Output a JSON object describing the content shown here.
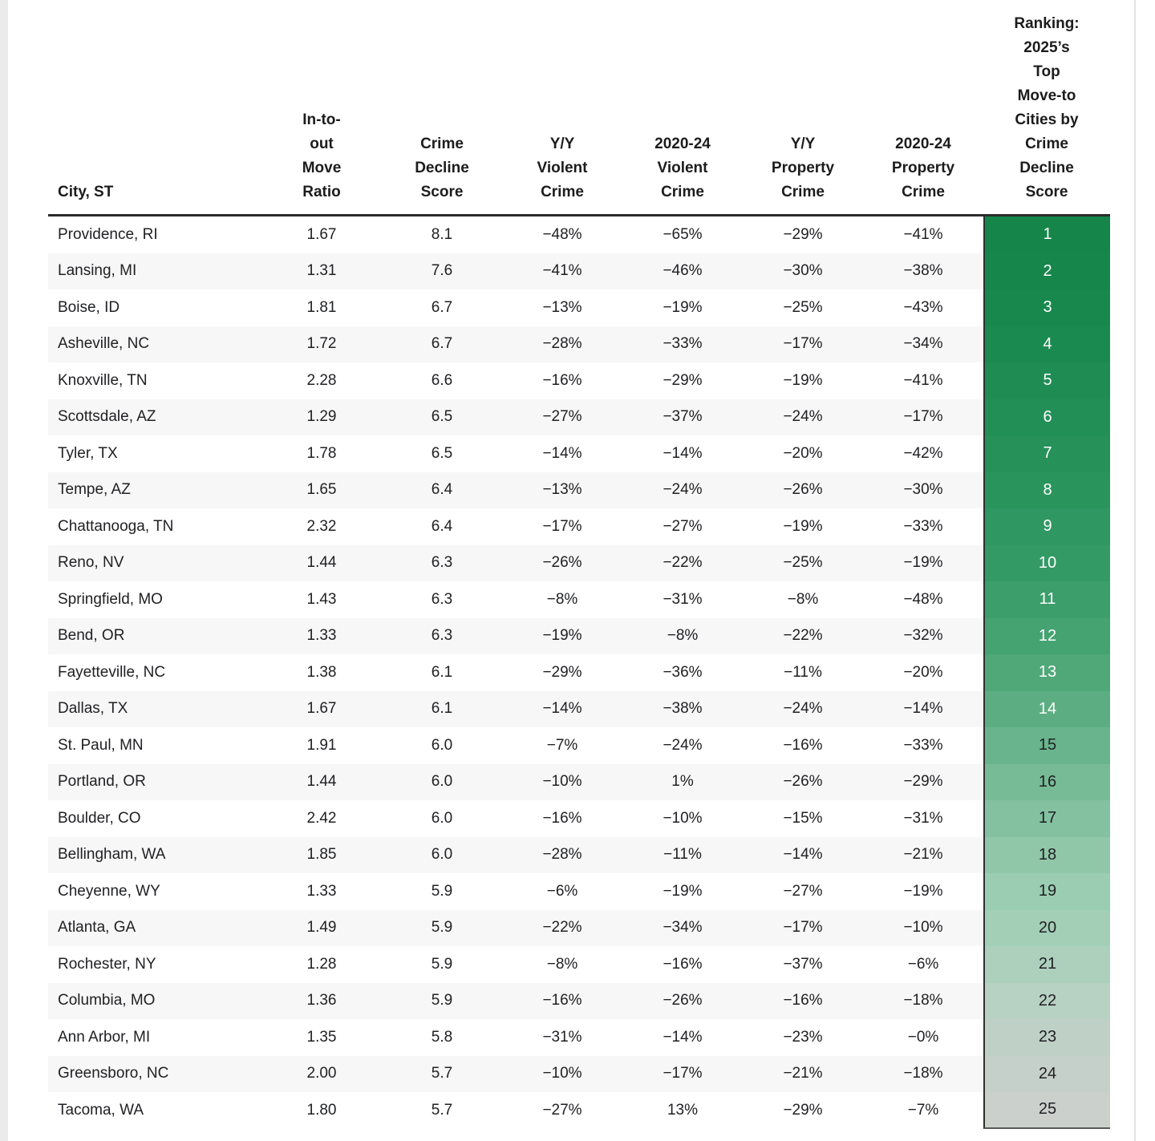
{
  "colors": {
    "header_rule": "#2b2b2b",
    "row_stripe": "#f7f7f7",
    "rank_column_border": "#2f2f2f",
    "rank_gradient_start": "#15854a",
    "rank_gradient_end": "#ccd0cd",
    "text": "#202124"
  },
  "table": {
    "columns": [
      "City, ST",
      "In-to-\nout\nMove\nRatio",
      "Crime\nDecline\nScore",
      "Y/Y\nViolent\nCrime",
      "2020-24\nViolent\nCrime",
      "Y/Y\nProperty\nCrime",
      "2020-24\nProperty\nCrime",
      "Ranking:\n2025’s\nTop\nMove-to\nCities by\nCrime\nDecline\nScore"
    ],
    "rows": [
      {
        "city": "Providence, RI",
        "move_ratio": "1.67",
        "score": "8.1",
        "yy_violent": "−48%",
        "violent_2020_24": "−65%",
        "yy_property": "−29%",
        "property_2020_24": "−41%",
        "rank": "1",
        "rank_bg": "#15854a",
        "rank_text": "#ffffff"
      },
      {
        "city": "Lansing, MI",
        "move_ratio": "1.31",
        "score": "7.6",
        "yy_violent": "−41%",
        "violent_2020_24": "−46%",
        "yy_property": "−30%",
        "property_2020_24": "−38%",
        "rank": "2",
        "rank_bg": "#16864b",
        "rank_text": "#ffffff"
      },
      {
        "city": "Boise, ID",
        "move_ratio": "1.81",
        "score": "6.7",
        "yy_violent": "−13%",
        "violent_2020_24": "−19%",
        "yy_property": "−25%",
        "property_2020_24": "−43%",
        "rank": "3",
        "rank_bg": "#18884d",
        "rank_text": "#ffffff"
      },
      {
        "city": "Asheville, NC",
        "move_ratio": "1.72",
        "score": "6.7",
        "yy_violent": "−28%",
        "violent_2020_24": "−33%",
        "yy_property": "−17%",
        "property_2020_24": "−34%",
        "rank": "4",
        "rank_bg": "#1b8a50",
        "rank_text": "#ffffff"
      },
      {
        "city": "Knoxville, TN",
        "move_ratio": "2.28",
        "score": "6.6",
        "yy_violent": "−16%",
        "violent_2020_24": "−29%",
        "yy_property": "−19%",
        "property_2020_24": "−41%",
        "rank": "5",
        "rank_bg": "#1e8c53",
        "rank_text": "#ffffff"
      },
      {
        "city": "Scottsdale, AZ",
        "move_ratio": "1.29",
        "score": "6.5",
        "yy_violent": "−27%",
        "violent_2020_24": "−37%",
        "yy_property": "−24%",
        "property_2020_24": "−17%",
        "rank": "6",
        "rank_bg": "#228f56",
        "rank_text": "#ffffff"
      },
      {
        "city": "Tyler, TX",
        "move_ratio": "1.78",
        "score": "6.5",
        "yy_violent": "−14%",
        "violent_2020_24": "−14%",
        "yy_property": "−20%",
        "property_2020_24": "−42%",
        "rank": "7",
        "rank_bg": "#269159",
        "rank_text": "#ffffff"
      },
      {
        "city": "Tempe, AZ",
        "move_ratio": "1.65",
        "score": "6.4",
        "yy_violent": "−13%",
        "violent_2020_24": "−24%",
        "yy_property": "−26%",
        "property_2020_24": "−30%",
        "rank": "8",
        "rank_bg": "#2a945d",
        "rank_text": "#ffffff"
      },
      {
        "city": "Chattanooga, TN",
        "move_ratio": "2.32",
        "score": "6.4",
        "yy_violent": "−17%",
        "violent_2020_24": "−27%",
        "yy_property": "−19%",
        "property_2020_24": "−33%",
        "rank": "9",
        "rank_bg": "#2f9761",
        "rank_text": "#ffffff"
      },
      {
        "city": "Reno, NV",
        "move_ratio": "1.44",
        "score": "6.3",
        "yy_violent": "−26%",
        "violent_2020_24": "−22%",
        "yy_property": "−25%",
        "property_2020_24": "−19%",
        "rank": "10",
        "rank_bg": "#349a65",
        "rank_text": "#ffffff"
      },
      {
        "city": "Springfield, MO",
        "move_ratio": "1.43",
        "score": "6.3",
        "yy_violent": "−8%",
        "violent_2020_24": "−31%",
        "yy_property": "−8%",
        "property_2020_24": "−48%",
        "rank": "11",
        "rank_bg": "#3c9e6b",
        "rank_text": "#ffffff"
      },
      {
        "city": "Bend, OR",
        "move_ratio": "1.33",
        "score": "6.3",
        "yy_violent": "−19%",
        "violent_2020_24": "−8%",
        "yy_property": "−22%",
        "property_2020_24": "−32%",
        "rank": "12",
        "rank_bg": "#45a271",
        "rank_text": "#ffffff"
      },
      {
        "city": "Fayetteville, NC",
        "move_ratio": "1.38",
        "score": "6.1",
        "yy_violent": "−29%",
        "violent_2020_24": "−36%",
        "yy_property": "−11%",
        "property_2020_24": "−20%",
        "rank": "13",
        "rank_bg": "#50a879",
        "rank_text": "#ffffff"
      },
      {
        "city": "Dallas, TX",
        "move_ratio": "1.67",
        "score": "6.1",
        "yy_violent": "−14%",
        "violent_2020_24": "−38%",
        "yy_property": "−24%",
        "property_2020_24": "−14%",
        "rank": "14",
        "rank_bg": "#5cae82",
        "rank_text": "#ffffff"
      },
      {
        "city": "St. Paul, MN",
        "move_ratio": "1.91",
        "score": "6.0",
        "yy_violent": "−7%",
        "violent_2020_24": "−24%",
        "yy_property": "−16%",
        "property_2020_24": "−33%",
        "rank": "15",
        "rank_bg": "#69b48c",
        "rank_text": "#202124"
      },
      {
        "city": "Portland, OR",
        "move_ratio": "1.44",
        "score": "6.0",
        "yy_violent": "−10%",
        "violent_2020_24": "1%",
        "yy_property": "−26%",
        "property_2020_24": "−29%",
        "rank": "16",
        "rank_bg": "#77bb96",
        "rank_text": "#202124"
      },
      {
        "city": "Boulder, CO",
        "move_ratio": "2.42",
        "score": "6.0",
        "yy_violent": "−16%",
        "violent_2020_24": "−10%",
        "yy_property": "−15%",
        "property_2020_24": "−31%",
        "rank": "17",
        "rank_bg": "#84c1a0",
        "rank_text": "#202124"
      },
      {
        "city": "Bellingham, WA",
        "move_ratio": "1.85",
        "score": "6.0",
        "yy_violent": "−28%",
        "violent_2020_24": "−11%",
        "yy_property": "−14%",
        "property_2020_24": "−21%",
        "rank": "18",
        "rank_bg": "#90c7a8",
        "rank_text": "#202124"
      },
      {
        "city": "Cheyenne, WY",
        "move_ratio": "1.33",
        "score": "5.9",
        "yy_violent": "−6%",
        "violent_2020_24": "−19%",
        "yy_property": "−27%",
        "property_2020_24": "−19%",
        "rank": "19",
        "rank_bg": "#9acdb1",
        "rank_text": "#202124"
      },
      {
        "city": "Atlanta, GA",
        "move_ratio": "1.49",
        "score": "5.9",
        "yy_violent": "−22%",
        "violent_2020_24": "−34%",
        "yy_property": "−17%",
        "property_2020_24": "−10%",
        "rank": "20",
        "rank_bg": "#a3cfb7",
        "rank_text": "#202124"
      },
      {
        "city": "Rochester, NY",
        "move_ratio": "1.28",
        "score": "5.9",
        "yy_violent": "−8%",
        "violent_2020_24": "−16%",
        "yy_property": "−37%",
        "property_2020_24": "−6%",
        "rank": "21",
        "rank_bg": "#add0bd",
        "rank_text": "#202124"
      },
      {
        "city": "Columbia, MO",
        "move_ratio": "1.36",
        "score": "5.9",
        "yy_violent": "−16%",
        "violent_2020_24": "−26%",
        "yy_property": "−16%",
        "property_2020_24": "−18%",
        "rank": "22",
        "rank_bg": "#b7d1c3",
        "rank_text": "#202124"
      },
      {
        "city": "Ann Arbor, MI",
        "move_ratio": "1.35",
        "score": "5.8",
        "yy_violent": "−31%",
        "violent_2020_24": "−14%",
        "yy_property": "−23%",
        "property_2020_24": "−0%",
        "rank": "23",
        "rank_bg": "#bfd0c7",
        "rank_text": "#202124"
      },
      {
        "city": "Greensboro, NC",
        "move_ratio": "2.00",
        "score": "5.7",
        "yy_violent": "−10%",
        "violent_2020_24": "−17%",
        "yy_property": "−21%",
        "property_2020_24": "−18%",
        "rank": "24",
        "rank_bg": "#c6d0ca",
        "rank_text": "#202124"
      },
      {
        "city": "Tacoma, WA",
        "move_ratio": "1.80",
        "score": "5.7",
        "yy_violent": "−27%",
        "violent_2020_24": "13%",
        "yy_property": "−29%",
        "property_2020_24": "−7%",
        "rank": "25",
        "rank_bg": "#ccd0cd",
        "rank_text": "#202124"
      }
    ]
  },
  "chart_data": {
    "type": "table",
    "title": "Ranking: 2025's Top Move-to Cities by Crime Decline Score",
    "columns": [
      "City, ST",
      "In-to-out Move Ratio",
      "Crime Decline Score",
      "Y/Y Violent Crime (%)",
      "2020-24 Violent Crime (%)",
      "Y/Y Property Crime (%)",
      "2020-24 Property Crime (%)",
      "Ranking"
    ],
    "rows": [
      [
        "Providence, RI",
        1.67,
        8.1,
        -48,
        -65,
        -29,
        -41,
        1
      ],
      [
        "Lansing, MI",
        1.31,
        7.6,
        -41,
        -46,
        -30,
        -38,
        2
      ],
      [
        "Boise, ID",
        1.81,
        6.7,
        -13,
        -19,
        -25,
        -43,
        3
      ],
      [
        "Asheville, NC",
        1.72,
        6.7,
        -28,
        -33,
        -17,
        -34,
        4
      ],
      [
        "Knoxville, TN",
        2.28,
        6.6,
        -16,
        -29,
        -19,
        -41,
        5
      ],
      [
        "Scottsdale, AZ",
        1.29,
        6.5,
        -27,
        -37,
        -24,
        -17,
        6
      ],
      [
        "Tyler, TX",
        1.78,
        6.5,
        -14,
        -14,
        -20,
        -42,
        7
      ],
      [
        "Tempe, AZ",
        1.65,
        6.4,
        -13,
        -24,
        -26,
        -30,
        8
      ],
      [
        "Chattanooga, TN",
        2.32,
        6.4,
        -17,
        -27,
        -19,
        -33,
        9
      ],
      [
        "Reno, NV",
        1.44,
        6.3,
        -26,
        -22,
        -25,
        -19,
        10
      ],
      [
        "Springfield, MO",
        1.43,
        6.3,
        -8,
        -31,
        -8,
        -48,
        11
      ],
      [
        "Bend, OR",
        1.33,
        6.3,
        -19,
        -8,
        -22,
        -32,
        12
      ],
      [
        "Fayetteville, NC",
        1.38,
        6.1,
        -29,
        -36,
        -11,
        -20,
        13
      ],
      [
        "Dallas, TX",
        1.67,
        6.1,
        -14,
        -38,
        -24,
        -14,
        14
      ],
      [
        "St. Paul, MN",
        1.91,
        6.0,
        -7,
        -24,
        -16,
        -33,
        15
      ],
      [
        "Portland, OR",
        1.44,
        6.0,
        -10,
        1,
        -26,
        -29,
        16
      ],
      [
        "Boulder, CO",
        2.42,
        6.0,
        -16,
        -10,
        -15,
        -31,
        17
      ],
      [
        "Bellingham, WA",
        1.85,
        6.0,
        -28,
        -11,
        -14,
        -21,
        18
      ],
      [
        "Cheyenne, WY",
        1.33,
        5.9,
        -6,
        -19,
        -27,
        -19,
        19
      ],
      [
        "Atlanta, GA",
        1.49,
        5.9,
        -22,
        -34,
        -17,
        -10,
        20
      ],
      [
        "Rochester, NY",
        1.28,
        5.9,
        -8,
        -16,
        -37,
        -6,
        21
      ],
      [
        "Columbia, MO",
        1.36,
        5.9,
        -16,
        -26,
        -16,
        -18,
        22
      ],
      [
        "Ann Arbor, MI",
        1.35,
        5.8,
        -31,
        -14,
        -23,
        0,
        23
      ],
      [
        "Greensboro, NC",
        2.0,
        5.7,
        -10,
        -17,
        -21,
        -18,
        24
      ],
      [
        "Tacoma, WA",
        1.8,
        5.7,
        -27,
        13,
        -29,
        -7,
        25
      ]
    ],
    "legend_position": "none",
    "grid": false,
    "notes": "Ranking column shaded on a green-to-gray gradient from rank 1 (dark green, white text) to rank 25 (light gray, dark text); rows alternate white / light-gray stripes."
  }
}
